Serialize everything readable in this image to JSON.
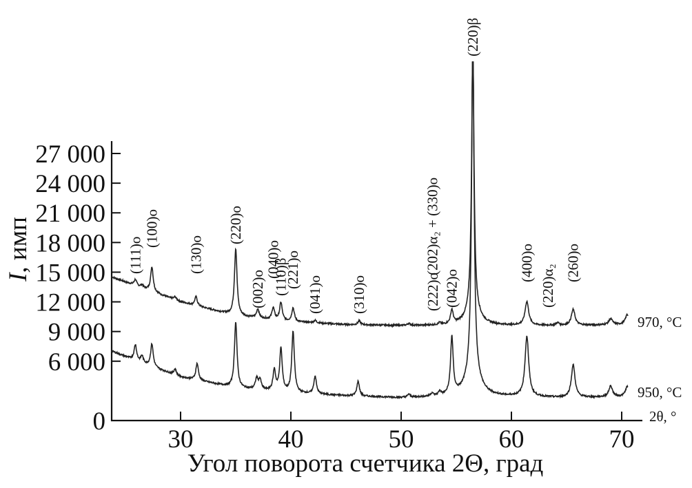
{
  "chart_data": {
    "type": "line",
    "title": "",
    "xlabel": "Угол поворота счетчика 2Θ, град",
    "ylabel_italic": "I",
    "ylabel_rest": ", имп",
    "x_axis_end_label": "2θ, °",
    "xlim": [
      23.75,
      71.75
    ],
    "ylim": [
      0,
      27000
    ],
    "x_ticks": [
      30,
      40,
      50,
      60,
      70
    ],
    "x_tick_labels": [
      "30",
      "40",
      "50",
      "60",
      "70"
    ],
    "y_ticks": [
      0,
      6000,
      9000,
      12000,
      15000,
      18000,
      21000,
      24000,
      27000
    ],
    "y_tick_labels": [
      "0",
      "6 000",
      "9 000",
      "12 000",
      "15 000",
      "18 000",
      "21 000",
      "24 000",
      "27 000"
    ],
    "grid": false,
    "legend": "none (series labelled at right end of traces)",
    "line_color": "#222222",
    "series": [
      {
        "name": "970, °C",
        "baseline": [
          [
            23.8,
            14500
          ],
          [
            26,
            13600
          ],
          [
            30,
            12000
          ],
          [
            35,
            10600
          ],
          [
            40,
            10000
          ],
          [
            45,
            9700
          ],
          [
            50,
            9600
          ],
          [
            55,
            9600
          ],
          [
            60,
            9600
          ],
          [
            65,
            9600
          ],
          [
            70,
            9700
          ]
        ],
        "peaks": [
          [
            25.9,
            600
          ],
          [
            26.5,
            300
          ],
          [
            27.4,
            2500
          ],
          [
            29.5,
            300
          ],
          [
            31.4,
            900
          ],
          [
            35.0,
            6800
          ],
          [
            37.0,
            900
          ],
          [
            38.4,
            1200
          ],
          [
            39.1,
            1800
          ],
          [
            40.2,
            1400
          ],
          [
            42.2,
            250
          ],
          [
            46.2,
            400
          ],
          [
            50.7,
            200
          ],
          [
            53.5,
            200
          ],
          [
            54.6,
            1400
          ],
          [
            56.5,
            27000
          ],
          [
            61.4,
            2400
          ],
          [
            64.2,
            250
          ],
          [
            65.6,
            1600
          ],
          [
            69.0,
            600
          ],
          [
            70.5,
            1000
          ]
        ]
      },
      {
        "name": "950, °C",
        "baseline": [
          [
            23.8,
            7000
          ],
          [
            26,
            6000
          ],
          [
            30,
            4400
          ],
          [
            35,
            3300
          ],
          [
            40,
            2800
          ],
          [
            45,
            2500
          ],
          [
            50,
            2300
          ],
          [
            55,
            2400
          ],
          [
            60,
            2400
          ],
          [
            65,
            2300
          ],
          [
            70,
            2400
          ]
        ],
        "peaks": [
          [
            25.9,
            1600
          ],
          [
            26.5,
            700
          ],
          [
            27.4,
            2300
          ],
          [
            29.5,
            600
          ],
          [
            31.5,
            1700
          ],
          [
            35.0,
            6700
          ],
          [
            36.9,
            1100
          ],
          [
            37.2,
            1000
          ],
          [
            38.5,
            2100
          ],
          [
            39.1,
            4300
          ],
          [
            40.2,
            6200
          ],
          [
            42.2,
            1800
          ],
          [
            46.1,
            1500
          ],
          [
            50.7,
            300
          ],
          [
            52.8,
            300
          ],
          [
            53.5,
            400
          ],
          [
            54.6,
            5800
          ],
          [
            56.5,
            34000
          ],
          [
            61.4,
            6100
          ],
          [
            65.6,
            3300
          ],
          [
            69.0,
            1100
          ],
          [
            70.5,
            1000
          ]
        ]
      }
    ],
    "annotations": [
      {
        "text": "(111)o",
        "x": 25.9
      },
      {
        "text": "(100)o",
        "x": 27.4
      },
      {
        "text": "(130)o",
        "x": 31.4
      },
      {
        "text": "(220)o",
        "x": 35.0
      },
      {
        "text": "(002)o",
        "x": 37.0
      },
      {
        "text": "(040)o",
        "x": 38.4
      },
      {
        "text": "(110)β",
        "x": 39.1
      },
      {
        "text": "(221)o",
        "x": 40.2
      },
      {
        "text": "(041)o",
        "x": 42.2
      },
      {
        "text": "(310)o",
        "x": 46.2
      },
      {
        "text": "(222)o",
        "x": 53.0
      },
      {
        "text": "(202)α₂ + (330)o",
        "x": 54.1
      },
      {
        "text": "(042)o",
        "x": 54.6
      },
      {
        "text": "(220)β",
        "x": 56.5
      },
      {
        "text": "(400)o",
        "x": 61.4
      },
      {
        "text": "(220)α₂",
        "x": 64.2
      },
      {
        "text": "(260)o",
        "x": 65.6
      }
    ]
  }
}
